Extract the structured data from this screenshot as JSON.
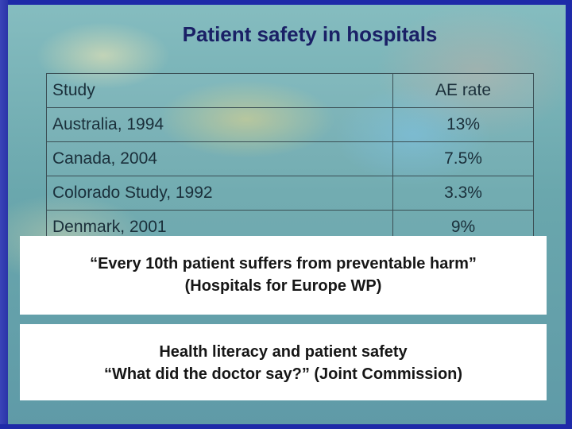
{
  "slide": {
    "title": "Patient safety in hospitals",
    "table": {
      "headers": [
        "Study",
        "AE rate"
      ],
      "rows": [
        [
          "Australia, 1994",
          "13%"
        ],
        [
          "Canada, 2004",
          "7.5%"
        ],
        [
          "Colorado Study, 1992",
          "3.3%"
        ],
        [
          "Denmark, 2001",
          "9%"
        ]
      ]
    },
    "callout_1": {
      "line1": "“Every 10th patient suffers from preventable harm”",
      "line2": "(Hospitals for Europe WP)"
    },
    "callout_2": {
      "line1": "Health literacy and patient safety",
      "line2": "“What did the doctor say?” (Joint Commission)"
    },
    "colors": {
      "frame": "#1e2aa8",
      "title": "#1a2066",
      "background": "#6aa7ad",
      "callout": "#ffffff"
    }
  }
}
